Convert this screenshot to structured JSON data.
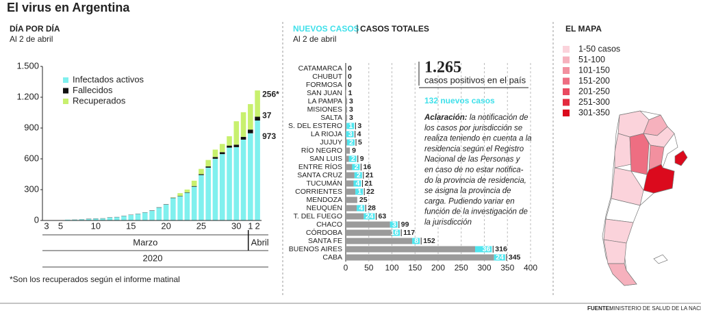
{
  "title": "El virus en Argentina",
  "source_label": "FUENTE:",
  "source": "MINISTERIO DE SALUD DE LA NACIÓN",
  "chart_data": [
    {
      "type": "bar",
      "stacked": true,
      "title": "DÍA POR DÍA",
      "subtitle": "Al 2 de abril",
      "categories": [
        "3",
        null,
        "5",
        null,
        null,
        null,
        null,
        "10",
        null,
        null,
        null,
        null,
        "15",
        null,
        null,
        null,
        null,
        "20",
        null,
        null,
        null,
        null,
        "25",
        null,
        null,
        null,
        null,
        "30",
        null,
        "1",
        "2"
      ],
      "x_groups": [
        "Marzo",
        "Abril"
      ],
      "x_year": "2020",
      "series": [
        {
          "name": "Infectados activos",
          "color": "#80f0ee",
          "values": [
            1,
            1,
            2,
            8,
            8,
            11,
            15,
            17,
            19,
            29,
            32,
            43,
            54,
            63,
            77,
            94,
            125,
            155,
            218,
            235,
            270,
            329,
            442,
            514,
            601,
            646,
            709,
            714,
            787,
            849,
            973
          ]
        },
        {
          "name": "Fallecidos",
          "color": "#111111",
          "values": [
            0,
            0,
            0,
            0,
            1,
            1,
            2,
            2,
            2,
            2,
            2,
            2,
            2,
            2,
            2,
            3,
            3,
            3,
            4,
            4,
            4,
            6,
            8,
            12,
            17,
            19,
            20,
            24,
            27,
            36,
            37
          ]
        },
        {
          "name": "Recuperados",
          "color": "#c8f06e",
          "values": [
            0,
            0,
            0,
            0,
            0,
            0,
            0,
            0,
            0,
            0,
            0,
            0,
            0,
            0,
            0,
            0,
            0,
            0,
            3,
            27,
            27,
            52,
            52,
            63,
            72,
            80,
            91,
            228,
            240,
            248,
            256
          ],
          "value_labels": [
            null,
            null,
            null,
            null,
            null,
            null,
            null,
            null,
            null,
            null,
            null,
            null,
            null,
            null,
            null,
            null,
            null,
            null,
            null,
            null,
            null,
            null,
            null,
            null,
            null,
            null,
            null,
            null,
            null,
            null,
            "256*"
          ]
        }
      ],
      "ylim": [
        0,
        1500
      ],
      "yticks": [
        0,
        300,
        600,
        900,
        {
          "value": 1200,
          "label": "1.200"
        },
        {
          "value": 1500,
          "label": "1.500"
        }
      ],
      "footnote": "*Son los recuperados según el informe matinal"
    },
    {
      "type": "barh",
      "stacked": true,
      "subtitle": "Al 2 de abril",
      "categories": [
        "CATAMARCA",
        "CHUBUT",
        "FORMOSA",
        "SAN JUAN",
        "LA PAMPA",
        "MISIONES",
        "SALTA",
        "S. DEL ESTERO",
        "LA RIOJA",
        "JUJUY",
        "RÍO NEGRO",
        "SAN LUIS",
        "ENTRE RÍOS",
        "SANTA CRUZ",
        "TUCUMÁN",
        "CORRIENTES",
        "MENDOZA",
        "NEUQUÉN",
        "T. DEL FUEGO",
        "CHACO",
        "CÓRDOBA",
        "SANTA FE",
        "BUENOS AIRES",
        "CABA"
      ],
      "series": [
        {
          "color": "#9b9b9b",
          "values": [
            0,
            0,
            0,
            1,
            3,
            3,
            3,
            2,
            1,
            3,
            9,
            7,
            14,
            19,
            17,
            21,
            25,
            24,
            39,
            96,
            101,
            144,
            280,
            321
          ]
        },
        {
          "name": "NUEVOS CASOS",
          "color": "#4fe6ef",
          "values": [
            0,
            0,
            0,
            0,
            0,
            0,
            0,
            1,
            3,
            2,
            0,
            2,
            2,
            2,
            4,
            1,
            0,
            4,
            24,
            3,
            16,
            8,
            36,
            24
          ]
        }
      ],
      "totals_name": "CASOS TOTALES",
      "totals": [
        0,
        0,
        0,
        1,
        3,
        3,
        3,
        3,
        4,
        5,
        9,
        9,
        16,
        21,
        21,
        22,
        25,
        28,
        63,
        99,
        117,
        152,
        316,
        345
      ],
      "xlim": [
        0,
        400
      ],
      "xticks": [
        0,
        50,
        100,
        150,
        200,
        250,
        300,
        350,
        400
      ],
      "grid": true,
      "headline": "1.265",
      "headline_text": "casos positivos en el país",
      "new_cases": "132 nuevos casos",
      "note_lead": "Aclaración:",
      "note_lines": [
        " la notificación de",
        "los casos por jurisdicción se",
        "realiza teniendo en cuenta a la",
        "residencia según el Registro",
        "Nacional de las Personas y",
        "en caso de no estar notifica-",
        "do la provincia de residencia,",
        "se asigna la provincia de",
        "carga. Pudiendo variar en",
        "función de la investigación de",
        "la jurisdicción"
      ]
    }
  ],
  "map": {
    "title": "EL MAPA",
    "legend": [
      {
        "label": "1-50 casos",
        "color": "#fbd3db"
      },
      {
        "label": "51-100",
        "color": "#f6b1bd"
      },
      {
        "label": "101-150",
        "color": "#f2909f"
      },
      {
        "label": "151-200",
        "color": "#ee6e82"
      },
      {
        "label": "201-250",
        "color": "#e94a60"
      },
      {
        "label": "251-300",
        "color": "#e32a3e"
      },
      {
        "label": "301-350",
        "color": "#db0a1d"
      }
    ]
  }
}
